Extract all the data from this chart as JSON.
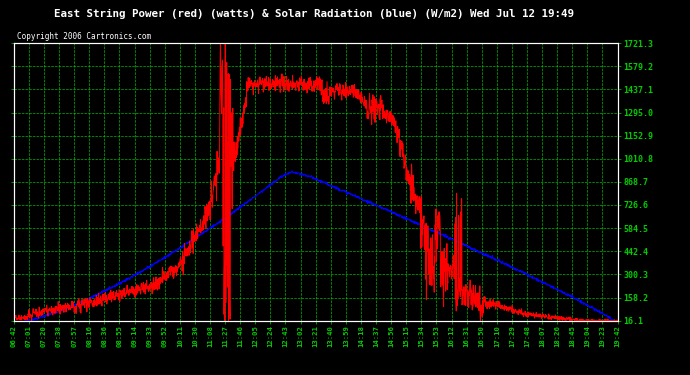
{
  "title": "East String Power (red) (watts) & Solar Radiation (blue) (W/m2) Wed Jul 12 19:49",
  "copyright": "Copyright 2006 Cartronics.com",
  "bg_color": "#000000",
  "grid_color": "#00cc00",
  "y_tick_labels": [
    "16.1",
    "158.2",
    "300.3",
    "442.4",
    "584.5",
    "726.6",
    "868.7",
    "1010.8",
    "1152.9",
    "1295.0",
    "1437.1",
    "1579.2",
    "1721.3"
  ],
  "y_tick_values": [
    16.1,
    158.2,
    300.3,
    442.4,
    584.5,
    726.6,
    868.7,
    1010.8,
    1152.9,
    1295.0,
    1437.1,
    1579.2,
    1721.3
  ],
  "ylim": [
    16.1,
    1721.3
  ],
  "x_tick_labels": [
    "06:42",
    "07:01",
    "07:20",
    "07:38",
    "07:57",
    "08:16",
    "08:36",
    "08:55",
    "09:14",
    "09:33",
    "09:52",
    "10:11",
    "10:30",
    "11:08",
    "11:27",
    "11:46",
    "12:05",
    "12:24",
    "12:43",
    "13:02",
    "13:21",
    "13:40",
    "13:59",
    "14:18",
    "14:37",
    "14:56",
    "15:15",
    "15:34",
    "15:53",
    "16:12",
    "16:31",
    "16:50",
    "17:10",
    "17:29",
    "17:48",
    "18:07",
    "18:26",
    "18:45",
    "19:04",
    "19:23",
    "19:42"
  ]
}
